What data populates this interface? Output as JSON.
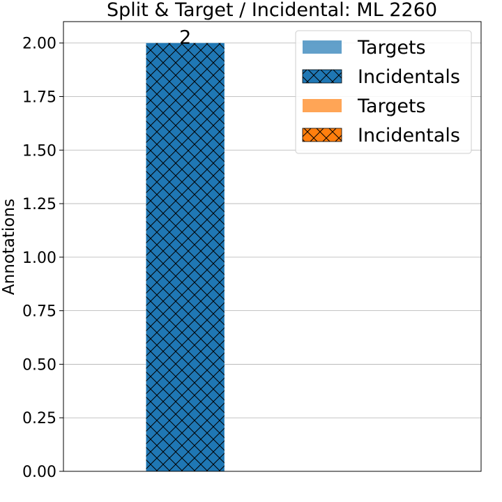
{
  "chart_data": {
    "type": "bar",
    "title": "Split & Target / Incidental: ML 2260",
    "xlabel": "",
    "ylabel": "Annotations",
    "ylim": [
      0,
      2.1
    ],
    "yticks": [
      0,
      0.25,
      0.5,
      0.75,
      1.0,
      1.25,
      1.5,
      1.75,
      2.0
    ],
    "ytick_labels": [
      "0.00",
      "0.25",
      "0.50",
      "0.75",
      "1.00",
      "1.25",
      "1.50",
      "1.75",
      "2.00"
    ],
    "grid": "horizontal",
    "legend_position": "top-right",
    "categories": [
      "",
      ""
    ],
    "series": [
      {
        "name": "Targets",
        "values": [
          0,
          0
        ],
        "color": "#1f77b4",
        "hatch": false,
        "alpha": 0.7
      },
      {
        "name": "Incidentals",
        "values": [
          2,
          0
        ],
        "color": "#1f77b4",
        "hatch": true
      },
      {
        "name": "Targets",
        "values": [
          0,
          0
        ],
        "color": "#ff7f0e",
        "hatch": false,
        "alpha": 0.7
      },
      {
        "name": "Incidentals",
        "values": [
          0,
          0
        ],
        "color": "#ff7f0e",
        "hatch": true
      }
    ],
    "data_labels": [
      {
        "category_index": 0,
        "text": "2"
      }
    ]
  }
}
